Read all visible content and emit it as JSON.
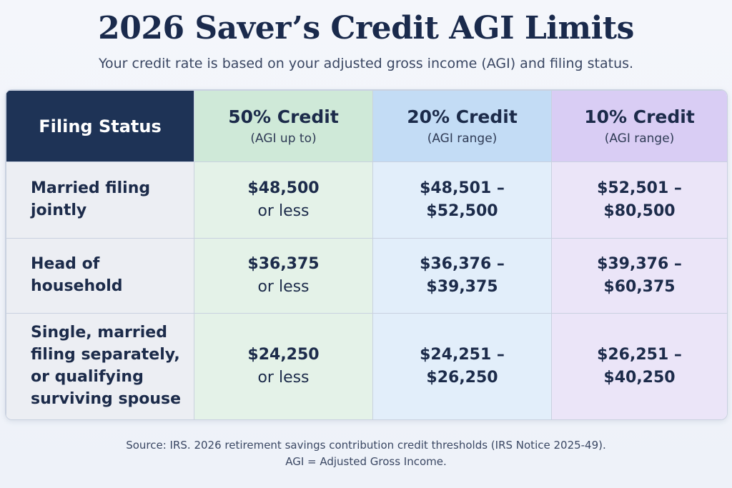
{
  "page": {
    "title": "2026 Saver’s Credit AGI Limits",
    "subtitle": "Your credit rate is based on your adjusted gross income (AGI) and filing status."
  },
  "table": {
    "headers": {
      "status": "Filing Status",
      "col50": {
        "label": "50% Credit",
        "sub": "(AGI up to)"
      },
      "col20": {
        "label": "20% Credit",
        "sub": "(AGI range)"
      },
      "col10": {
        "label": "10% Credit",
        "sub": "(AGI range)"
      }
    },
    "rows": [
      {
        "status": "Married filing jointly",
        "col50_top": "$48,500",
        "col50_bot": "or less",
        "col20_top": "$48,501 –",
        "col20_bot": "$52,500",
        "col10_top": "$52,501 –",
        "col10_bot": "$80,500"
      },
      {
        "status": "Head of household",
        "col50_top": "$36,375",
        "col50_bot": "or less",
        "col20_top": "$36,376 –",
        "col20_bot": "$39,375",
        "col10_top": "$39,376 –",
        "col10_bot": "$60,375"
      },
      {
        "status": "Single, married filing separately, or qualifying surviving spouse",
        "col50_top": "$24,250",
        "col50_bot": "or less",
        "col20_top": "$24,251 –",
        "col20_bot": "$26,250",
        "col10_top": "$26,251 –",
        "col10_bot": "$40,250"
      }
    ]
  },
  "footer": {
    "source": "Source: IRS. 2026 retirement savings contribution credit thresholds (IRS Notice 2025-49).",
    "agi_note": "AGI = Adjusted Gross Income."
  },
  "colors": {
    "header_status_bg": "#1e3356",
    "col50_header_bg": "#cfe9d8",
    "col20_header_bg": "#c3dcf5",
    "col10_header_bg": "#d9cdf4",
    "text_primary": "#1c2b4a"
  }
}
